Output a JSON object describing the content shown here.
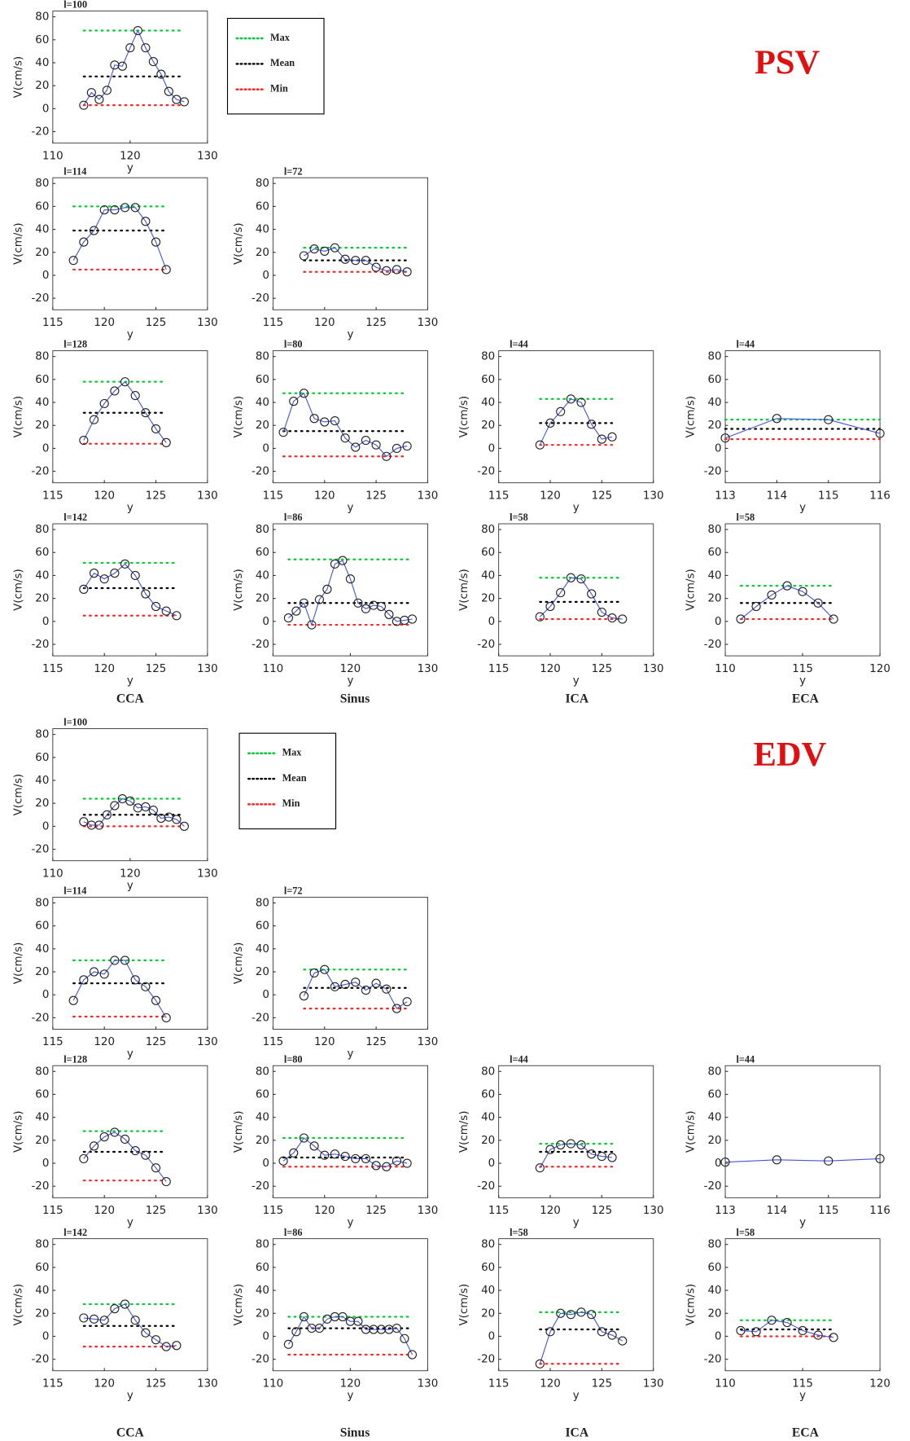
{
  "sections": [
    {
      "title": "PSV",
      "columns": [
        "CCA",
        "Sinus",
        "ICA",
        "ECA"
      ],
      "legend": [
        {
          "name": "Max",
          "color": "#00cc33"
        },
        {
          "name": "Mean",
          "color": "#000000"
        },
        {
          "name": "Min",
          "color": "#ff2222"
        }
      ]
    },
    {
      "title": "EDV",
      "columns": [
        "CCA",
        "Sinus",
        "ICA",
        "ECA"
      ],
      "legend": [
        {
          "name": "Max",
          "color": "#00cc33"
        },
        {
          "name": "Mean",
          "color": "#000000"
        },
        {
          "name": "Min",
          "color": "#ff2222"
        }
      ]
    }
  ],
  "chart_data": [
    {
      "type": "line",
      "title": "l=100",
      "xlabel": "y",
      "ylabel": "V(cm/s)",
      "color": "#4455dd",
      "xlim": [
        110,
        130
      ],
      "xticks": [
        110,
        120,
        130
      ],
      "ylim": [
        -30,
        85
      ],
      "yticks": [
        -20,
        0,
        20,
        40,
        60,
        80
      ],
      "x": [
        114,
        115,
        116,
        117,
        118,
        119,
        120,
        121,
        122,
        123,
        124,
        125,
        126,
        127
      ],
      "values": [
        3,
        14,
        8,
        16,
        38,
        37,
        53,
        68,
        53,
        41,
        30,
        15,
        8,
        6
      ],
      "max": 68,
      "mean": 28,
      "min": 3
    },
    {
      "type": "line",
      "title": "l=114",
      "xlabel": "y",
      "ylabel": "V(cm/s)",
      "color": "#4455dd",
      "xlim": [
        115,
        130
      ],
      "xticks": [
        115,
        120,
        125,
        130
      ],
      "ylim": [
        -30,
        85
      ],
      "yticks": [
        -20,
        0,
        20,
        40,
        60,
        80
      ],
      "x": [
        117,
        118,
        119,
        120,
        121,
        122,
        123,
        124,
        125,
        126
      ],
      "values": [
        13,
        29,
        39,
        57,
        57,
        59,
        59,
        47,
        29,
        5
      ],
      "max": 60,
      "mean": 39,
      "min": 5
    },
    {
      "type": "line",
      "title": "l=72",
      "xlabel": "y",
      "ylabel": "V(cm/s)",
      "color": "#4455dd",
      "xlim": [
        115,
        130
      ],
      "xticks": [
        115,
        120,
        125,
        130
      ],
      "ylim": [
        -30,
        85
      ],
      "yticks": [
        -20,
        0,
        20,
        40,
        60,
        80
      ],
      "x": [
        118,
        119,
        120,
        121,
        122,
        123,
        124,
        125,
        126,
        127,
        128
      ],
      "values": [
        17,
        23,
        21,
        24,
        14,
        13,
        13,
        7,
        4,
        5,
        3
      ],
      "max": 24,
      "mean": 13,
      "min": 3
    },
    {
      "type": "line",
      "title": "l=128",
      "xlabel": "y",
      "ylabel": "V(cm/s)",
      "color": "#4455dd",
      "xlim": [
        115,
        130
      ],
      "xticks": [
        115,
        120,
        125,
        130
      ],
      "ylim": [
        -30,
        85
      ],
      "yticks": [
        -20,
        0,
        20,
        40,
        60,
        80
      ],
      "x": [
        118,
        119,
        120,
        121,
        122,
        123,
        124,
        125,
        126
      ],
      "values": [
        7,
        25,
        39,
        50,
        58,
        46,
        31,
        17,
        5
      ],
      "max": 58,
      "mean": 31,
      "min": 4
    },
    {
      "type": "line",
      "title": "l=80",
      "xlabel": "y",
      "ylabel": "V(cm/s)",
      "color": "#4455dd",
      "xlim": [
        115,
        130
      ],
      "xticks": [
        115,
        120,
        125,
        130
      ],
      "ylim": [
        -30,
        85
      ],
      "yticks": [
        -20,
        0,
        20,
        40,
        60,
        80
      ],
      "x": [
        116,
        117,
        118,
        119,
        120,
        121,
        122,
        123,
        124,
        125,
        126,
        127,
        128
      ],
      "values": [
        14,
        41,
        48,
        26,
        23,
        24,
        9,
        1,
        7,
        3,
        -7,
        0,
        2
      ],
      "max": 48,
      "mean": 15,
      "min": -7
    },
    {
      "type": "line",
      "title": "l=44",
      "xlabel": "y",
      "ylabel": "V(cm/s)",
      "color": "#4455dd",
      "xlim": [
        115,
        130
      ],
      "xticks": [
        115,
        120,
        125,
        130
      ],
      "ylim": [
        -30,
        85
      ],
      "yticks": [
        -20,
        0,
        20,
        40,
        60,
        80
      ],
      "x": [
        119,
        120,
        121,
        122,
        123,
        124,
        125,
        126
      ],
      "values": [
        3,
        22,
        32,
        43,
        40,
        21,
        8,
        10
      ],
      "max": 43,
      "mean": 22,
      "min": 3
    },
    {
      "type": "line",
      "title": "l=44",
      "xlabel": "y",
      "ylabel": "V(cm/s)",
      "color": "#4455dd",
      "xlim": [
        113,
        116
      ],
      "xticks": [
        113,
        114,
        115,
        116
      ],
      "ylim": [
        -30,
        85
      ],
      "yticks": [
        -20,
        0,
        20,
        40,
        60,
        80
      ],
      "x": [
        113,
        114,
        115,
        116
      ],
      "values": [
        9,
        26,
        25,
        13
      ],
      "max": 25,
      "mean": 17,
      "min": 8
    },
    {
      "type": "line",
      "title": "l=142",
      "xlabel": "y",
      "ylabel": "V(cm/s)",
      "color": "#4455dd",
      "xlim": [
        115,
        130
      ],
      "xticks": [
        115,
        120,
        125,
        130
      ],
      "ylim": [
        -30,
        85
      ],
      "yticks": [
        -20,
        0,
        20,
        40,
        60,
        80
      ],
      "x": [
        118,
        119,
        120,
        121,
        122,
        123,
        124,
        125,
        126,
        127
      ],
      "values": [
        28,
        42,
        37,
        42,
        50,
        40,
        24,
        13,
        9,
        5
      ],
      "max": 51,
      "mean": 29,
      "min": 5
    },
    {
      "type": "line",
      "title": "l=86",
      "xlabel": "y",
      "ylabel": "V(cm/s)",
      "color": "#4455dd",
      "xlim": [
        110,
        130
      ],
      "xticks": [
        110,
        120,
        130
      ],
      "ylim": [
        -30,
        85
      ],
      "yticks": [
        -20,
        0,
        20,
        40,
        60,
        80
      ],
      "x": [
        112,
        113,
        114,
        115,
        116,
        117,
        118,
        119,
        120,
        121,
        122,
        123,
        124,
        125,
        126,
        127,
        128
      ],
      "values": [
        3,
        9,
        16,
        -3,
        19,
        28,
        50,
        53,
        37,
        16,
        11,
        14,
        13,
        6,
        0,
        1,
        2
      ],
      "max": 54,
      "mean": 16,
      "min": -3
    },
    {
      "type": "line",
      "title": "l=58",
      "xlabel": "y",
      "ylabel": "V(cm/s)",
      "color": "#4455dd",
      "xlim": [
        115,
        130
      ],
      "xticks": [
        115,
        120,
        125,
        130
      ],
      "ylim": [
        -30,
        85
      ],
      "yticks": [
        -20,
        0,
        20,
        40,
        60,
        80
      ],
      "x": [
        119,
        120,
        121,
        122,
        123,
        124,
        125,
        126,
        127
      ],
      "values": [
        4,
        13,
        25,
        38,
        37,
        24,
        8,
        3,
        2
      ],
      "max": 38,
      "mean": 17,
      "min": 2
    },
    {
      "type": "line",
      "title": "l=58",
      "xlabel": "y",
      "ylabel": "V(cm/s)",
      "color": "#4455dd",
      "xlim": [
        110,
        120
      ],
      "xticks": [
        110,
        115,
        120
      ],
      "ylim": [
        -30,
        85
      ],
      "yticks": [
        -20,
        0,
        20,
        40,
        60,
        80
      ],
      "x": [
        111,
        112,
        113,
        114,
        115,
        116,
        117
      ],
      "values": [
        2,
        13,
        23,
        31,
        26,
        16,
        2
      ],
      "max": 31,
      "mean": 16,
      "min": 2
    },
    {
      "type": "line",
      "title": "l=100",
      "xlabel": "y",
      "ylabel": "V(cm/s)",
      "color": "#4455dd",
      "xlim": [
        110,
        130
      ],
      "xticks": [
        110,
        120,
        130
      ],
      "ylim": [
        -30,
        85
      ],
      "yticks": [
        -20,
        0,
        20,
        40,
        60,
        80
      ],
      "x": [
        114,
        115,
        116,
        117,
        118,
        119,
        120,
        121,
        122,
        123,
        124,
        125,
        126,
        127
      ],
      "values": [
        4,
        1,
        1,
        10,
        18,
        24,
        22,
        16,
        17,
        14,
        7,
        8,
        6,
        0
      ],
      "max": 24,
      "mean": 10,
      "min": 0
    },
    {
      "type": "line",
      "title": "l=114",
      "xlabel": "y",
      "ylabel": "V(cm/s)",
      "color": "#4455dd",
      "xlim": [
        115,
        130
      ],
      "xticks": [
        115,
        120,
        125,
        130
      ],
      "ylim": [
        -30,
        85
      ],
      "yticks": [
        -20,
        0,
        20,
        40,
        60,
        80
      ],
      "x": [
        117,
        118,
        119,
        120,
        121,
        122,
        123,
        124,
        125,
        126
      ],
      "values": [
        -5,
        13,
        20,
        18,
        30,
        30,
        13,
        7,
        -5,
        -20
      ],
      "max": 30,
      "mean": 10,
      "min": -19
    },
    {
      "type": "line",
      "title": "l=72",
      "xlabel": "y",
      "ylabel": "V(cm/s)",
      "color": "#4455dd",
      "xlim": [
        115,
        130
      ],
      "xticks": [
        115,
        120,
        125,
        130
      ],
      "ylim": [
        -30,
        85
      ],
      "yticks": [
        -20,
        0,
        20,
        40,
        60,
        80
      ],
      "x": [
        118,
        119,
        120,
        121,
        122,
        123,
        124,
        125,
        126,
        127,
        128
      ],
      "values": [
        -1,
        19,
        22,
        7,
        9,
        11,
        4,
        10,
        5,
        -12,
        -6
      ],
      "max": 22,
      "mean": 6,
      "min": -12
    },
    {
      "type": "line",
      "title": "l=128",
      "xlabel": "y",
      "ylabel": "V(cm/s)",
      "color": "#4455dd",
      "xlim": [
        115,
        130
      ],
      "xticks": [
        115,
        120,
        125,
        130
      ],
      "ylim": [
        -30,
        85
      ],
      "yticks": [
        -20,
        0,
        20,
        40,
        60,
        80
      ],
      "x": [
        118,
        119,
        120,
        121,
        122,
        123,
        124,
        125,
        126
      ],
      "values": [
        4,
        15,
        23,
        27,
        21,
        11,
        7,
        -4,
        -16
      ],
      "max": 28,
      "mean": 10,
      "min": -15
    },
    {
      "type": "line",
      "title": "l=80",
      "xlabel": "y",
      "ylabel": "V(cm/s)",
      "color": "#4455dd",
      "xlim": [
        115,
        130
      ],
      "xticks": [
        115,
        120,
        125,
        130
      ],
      "ylim": [
        -30,
        85
      ],
      "yticks": [
        -20,
        0,
        20,
        40,
        60,
        80
      ],
      "x": [
        116,
        117,
        118,
        119,
        120,
        121,
        122,
        123,
        124,
        125,
        126,
        127,
        128
      ],
      "values": [
        2,
        9,
        22,
        15,
        7,
        8,
        6,
        4,
        4,
        -2,
        -3,
        2,
        0
      ],
      "max": 22,
      "mean": 5,
      "min": -3
    },
    {
      "type": "line",
      "title": "l=44",
      "xlabel": "y",
      "ylabel": "V(cm/s)",
      "color": "#4455dd",
      "xlim": [
        115,
        130
      ],
      "xticks": [
        115,
        120,
        125,
        130
      ],
      "ylim": [
        -30,
        85
      ],
      "yticks": [
        -20,
        0,
        20,
        40,
        60,
        80
      ],
      "x": [
        119,
        120,
        121,
        122,
        123,
        124,
        125,
        126
      ],
      "values": [
        -4,
        12,
        16,
        17,
        16,
        8,
        6,
        5
      ],
      "max": 17,
      "mean": 10,
      "min": -3
    },
    {
      "type": "line",
      "title": "l=44",
      "xlabel": "y",
      "ylabel": "V(cm/s)",
      "color": "#4455dd",
      "xlim": [
        113,
        116
      ],
      "xticks": [
        113,
        114,
        115,
        116
      ],
      "ylim": [
        -30,
        85
      ],
      "yticks": [
        -20,
        0,
        20,
        40,
        60,
        80
      ],
      "x": [
        113,
        114,
        115,
        116
      ],
      "values": [
        1,
        3,
        2,
        4
      ]
    },
    {
      "type": "line",
      "title": "l=142",
      "xlabel": "y",
      "ylabel": "V(cm/s)",
      "color": "#4455dd",
      "xlim": [
        115,
        130
      ],
      "xticks": [
        115,
        120,
        125,
        130
      ],
      "ylim": [
        -30,
        85
      ],
      "yticks": [
        -20,
        0,
        20,
        40,
        60,
        80
      ],
      "x": [
        118,
        119,
        120,
        121,
        122,
        123,
        124,
        125,
        126,
        127
      ],
      "values": [
        16,
        15,
        14,
        24,
        28,
        14,
        3,
        -3,
        -9,
        -8
      ],
      "max": 28,
      "mean": 9,
      "min": -9
    },
    {
      "type": "line",
      "title": "l=86",
      "xlabel": "y",
      "ylabel": "V(cm/s)",
      "color": "#4455dd",
      "xlim": [
        110,
        130
      ],
      "xticks": [
        110,
        120,
        130
      ],
      "ylim": [
        -30,
        85
      ],
      "yticks": [
        -20,
        0,
        20,
        40,
        60,
        80
      ],
      "x": [
        112,
        113,
        114,
        115,
        116,
        117,
        118,
        119,
        120,
        121,
        122,
        123,
        124,
        125,
        126,
        127,
        128
      ],
      "values": [
        -7,
        4,
        17,
        7,
        7,
        15,
        17,
        17,
        13,
        13,
        6,
        6,
        6,
        6,
        7,
        -2,
        -16
      ],
      "max": 17,
      "mean": 7,
      "min": -16
    },
    {
      "type": "line",
      "title": "l=58",
      "xlabel": "y",
      "ylabel": "V(cm/s)",
      "color": "#4455dd",
      "xlim": [
        115,
        130
      ],
      "xticks": [
        115,
        120,
        125,
        130
      ],
      "ylim": [
        -30,
        85
      ],
      "yticks": [
        -20,
        0,
        20,
        40,
        60,
        80
      ],
      "x": [
        119,
        120,
        121,
        122,
        123,
        124,
        125,
        126,
        127
      ],
      "values": [
        -24,
        4,
        20,
        19,
        21,
        19,
        4,
        1,
        -4
      ],
      "max": 21,
      "mean": 6,
      "min": -24
    },
    {
      "type": "line",
      "title": "l=58",
      "xlabel": "y",
      "ylabel": "V(cm/s)",
      "color": "#4455dd",
      "xlim": [
        110,
        120
      ],
      "xticks": [
        110,
        115,
        120
      ],
      "ylim": [
        -30,
        85
      ],
      "yticks": [
        -20,
        0,
        20,
        40,
        60,
        80
      ],
      "x": [
        111,
        112,
        113,
        114,
        115,
        116,
        117
      ],
      "values": [
        5,
        4,
        14,
        12,
        5,
        1,
        -1
      ],
      "max": 14,
      "mean": 6,
      "min": 0
    }
  ]
}
